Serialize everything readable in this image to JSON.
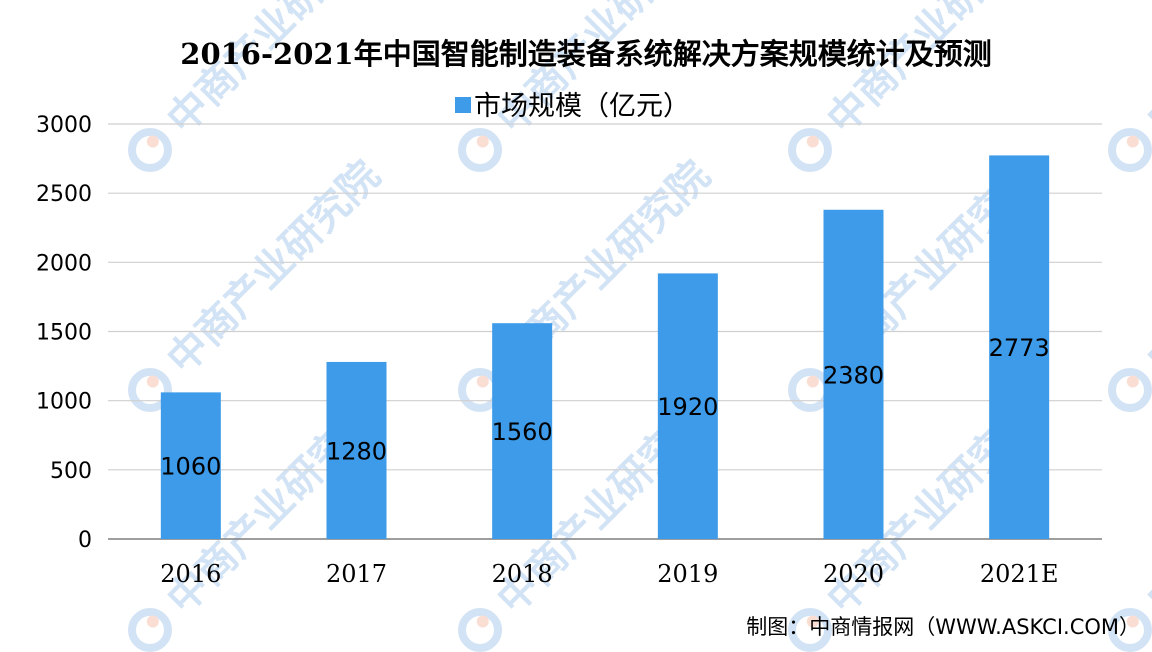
{
  "chart_data": {
    "type": "bar",
    "title": "2016-2021年中国智能制造装备系统解决方案规模统计及预测",
    "categories": [
      "2016",
      "2017",
      "2018",
      "2019",
      "2020",
      "2021E"
    ],
    "series": [
      {
        "name": "市场规模（亿元）",
        "values": [
          1060,
          1280,
          1560,
          1920,
          2380,
          2773
        ],
        "color": "#3d9be9"
      }
    ],
    "y_ticks": [
      "0",
      "500",
      "1000",
      "1500",
      "2000",
      "2500",
      "3000"
    ],
    "ylim": [
      0,
      3000
    ],
    "grid": true,
    "legend_position": "top-center",
    "xlabel": "",
    "ylabel": ""
  },
  "source": "制图：中商情报网（WWW.ASKCI.COM）",
  "watermark": {
    "text": "中商产业研究院",
    "icon": "askci-logo-icon"
  }
}
